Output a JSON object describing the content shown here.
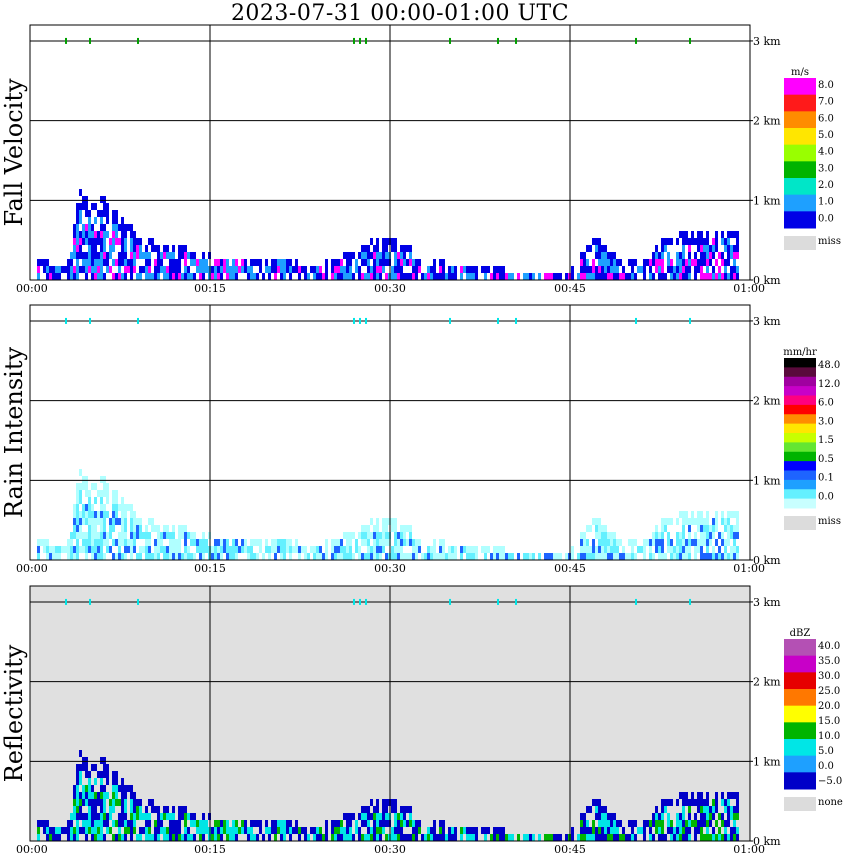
{
  "title": "2023-07-31   00:00-01:00 UTC",
  "x_ticks": [
    "00:00",
    "00:15",
    "00:30",
    "00:45",
    "01:00"
  ],
  "y_ticks": [
    "0 km",
    "1 km",
    "2 km",
    "3 km"
  ],
  "panels": [
    {
      "label": "Fall Velocity",
      "unit": "m/s",
      "legend": [
        "8.0",
        "7.0",
        "6.0",
        "5.0",
        "4.0",
        "3.0",
        "2.0",
        "1.0",
        "0.0"
      ],
      "legend_colors": [
        "#ff00ff",
        "#ff1a1a",
        "#ff8c00",
        "#ffe600",
        "#99ff00",
        "#00b300",
        "#00e6c8",
        "#1ea0ff",
        "#0000e6"
      ],
      "miss": "miss",
      "background": "#ffffff",
      "echo_colors": [
        "#0000e6",
        "#1ea0ff",
        "#ff00ff"
      ]
    },
    {
      "label": "Rain Intensity",
      "unit": "mm/hr",
      "legend": [
        "48.0",
        "12.0",
        "6.0",
        "3.0",
        "1.5",
        "0.5",
        "0.1",
        "0.0"
      ],
      "legend_colors": [
        "#000000",
        "#5a0a3c",
        "#a000a0",
        "#c800c8",
        "#ff0080",
        "#ff0000",
        "#ff8c00",
        "#ffe600",
        "#c8ff00",
        "#64e632",
        "#00b300",
        "#0000ff",
        "#1e64ff",
        "#1ea0ff",
        "#64f0ff",
        "#c8ffff"
      ],
      "miss": "miss",
      "background": "#ffffff",
      "echo_colors": [
        "#b0ffff",
        "#64f0ff",
        "#1e64ff"
      ]
    },
    {
      "label": "Reflectivity",
      "unit": "dBZ",
      "legend": [
        "40.0",
        "35.0",
        "30.0",
        "25.0",
        "20.0",
        "15.0",
        "10.0",
        "5.0",
        "0.0",
        "−5.0"
      ],
      "legend_colors": [
        "#b450b4",
        "#c800c8",
        "#e60000",
        "#ff7800",
        "#ffff00",
        "#00b400",
        "#00e6e6",
        "#1ea0ff",
        "#0000c8"
      ],
      "miss": "none",
      "background": "#e0e0e0",
      "echo_colors": [
        "#0000c8",
        "#00e6e6",
        "#00b400"
      ]
    }
  ],
  "chart_data": {
    "type": "heatmap",
    "x_range": [
      "00:00",
      "01:00"
    ],
    "y_range_km": [
      0,
      3
    ],
    "echo_profile": [
      {
        "t_min": 0.5,
        "top_km": 0.3
      },
      {
        "t_min": 3,
        "top_km": 0.2
      },
      {
        "t_min": 4,
        "top_km": 1.2
      },
      {
        "t_min": 5,
        "top_km": 1.0
      },
      {
        "t_min": 6,
        "top_km": 1.1
      },
      {
        "t_min": 8,
        "top_km": 0.8
      },
      {
        "t_min": 9,
        "top_km": 0.6
      },
      {
        "t_min": 11,
        "top_km": 0.5
      },
      {
        "t_min": 13,
        "top_km": 0.45
      },
      {
        "t_min": 15,
        "top_km": 0.35
      },
      {
        "t_min": 17,
        "top_km": 0.35
      },
      {
        "t_min": 19,
        "top_km": 0.3
      },
      {
        "t_min": 21,
        "top_km": 0.35
      },
      {
        "t_min": 23,
        "top_km": 0.2
      },
      {
        "t_min": 25,
        "top_km": 0.3
      },
      {
        "t_min": 27,
        "top_km": 0.4
      },
      {
        "t_min": 29,
        "top_km": 0.6
      },
      {
        "t_min": 31,
        "top_km": 0.5
      },
      {
        "t_min": 33,
        "top_km": 0.3
      },
      {
        "t_min": 35,
        "top_km": 0.25
      },
      {
        "t_min": 37,
        "top_km": 0.2
      },
      {
        "t_min": 38,
        "top_km": 0.2
      },
      {
        "t_min": 44,
        "top_km": 0.1
      },
      {
        "t_min": 45,
        "top_km": 0.2
      },
      {
        "t_min": 47,
        "top_km": 0.6
      },
      {
        "t_min": 49,
        "top_km": 0.3
      },
      {
        "t_min": 51,
        "top_km": 0.25
      },
      {
        "t_min": 53,
        "top_km": 0.6
      },
      {
        "t_min": 56,
        "top_km": 0.65
      },
      {
        "t_min": 59,
        "top_km": 0.7
      }
    ],
    "marks_3km_minutes": [
      3,
      5,
      9,
      27,
      27.5,
      28,
      35,
      39,
      40.5,
      50.5,
      55
    ]
  }
}
